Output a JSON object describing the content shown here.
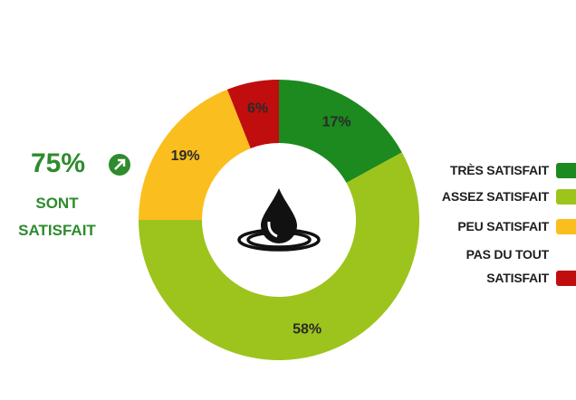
{
  "chart_data": {
    "type": "donut",
    "categories": [
      "TRÈS SATISFAIT",
      "ASSEZ SATISFAIT",
      "PEU SATISFAIT",
      "PAS DU TOUT SATISFAIT"
    ],
    "values": [
      17,
      58,
      19,
      6
    ],
    "value_labels": [
      "17%",
      "58%",
      "19%",
      "6%"
    ],
    "colors": [
      "#1c8a1f",
      "#9dc41c",
      "#fbbe1f",
      "#c00d0d"
    ],
    "legend": "right",
    "annotation": {
      "value_text": "75%",
      "text": "SONT SATISFAIT"
    }
  }
}
